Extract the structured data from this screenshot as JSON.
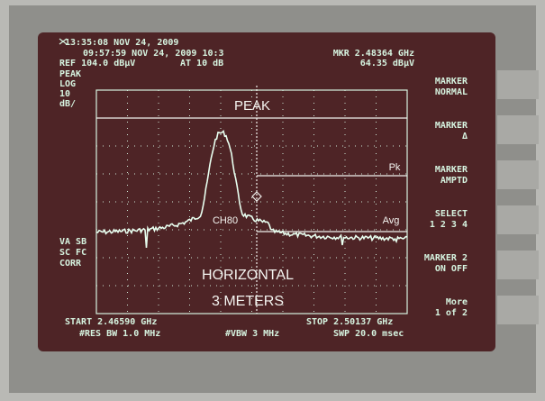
{
  "header": {
    "clock": "13:35:08 NOV 24, 2009",
    "timestamp": "09:57:59 NOV 24, 2009 10:3",
    "reference": "REF 104.0 dBμV",
    "attenuation": "AT 10 dB",
    "marker_freq": "MKR 2.48364 GHz",
    "marker_level": "64.35 dBμV"
  },
  "left_labels": [
    "PEAK",
    "LOG",
    "10",
    "dB/"
  ],
  "left_status": [
    "VA SB",
    "SC FC",
    "CORR"
  ],
  "softkeys": [
    [
      "MARKER",
      "NORMAL"
    ],
    [
      "MARKER",
      "Δ"
    ],
    [
      "MARKER",
      "AMPTD"
    ],
    [
      "SELECT",
      "1 2 3 4"
    ],
    [
      "MARKER 2",
      "ON OFF"
    ],
    [
      "More",
      "1 of 2"
    ]
  ],
  "overlays": {
    "detector": "PEAK",
    "peak_line": "Pk",
    "channel": "CH80",
    "average_line": "Avg",
    "polarization": "HORIZONTAL",
    "distance": "3 METERS"
  },
  "footer": {
    "start": "START 2.46590 GHz",
    "stop": "STOP 2.50137 GHz",
    "rbw": "#RES BW 1.0 MHz",
    "vbw": "#VBW 3 MHz",
    "sweep": "SWP 20.0 msec"
  }
}
